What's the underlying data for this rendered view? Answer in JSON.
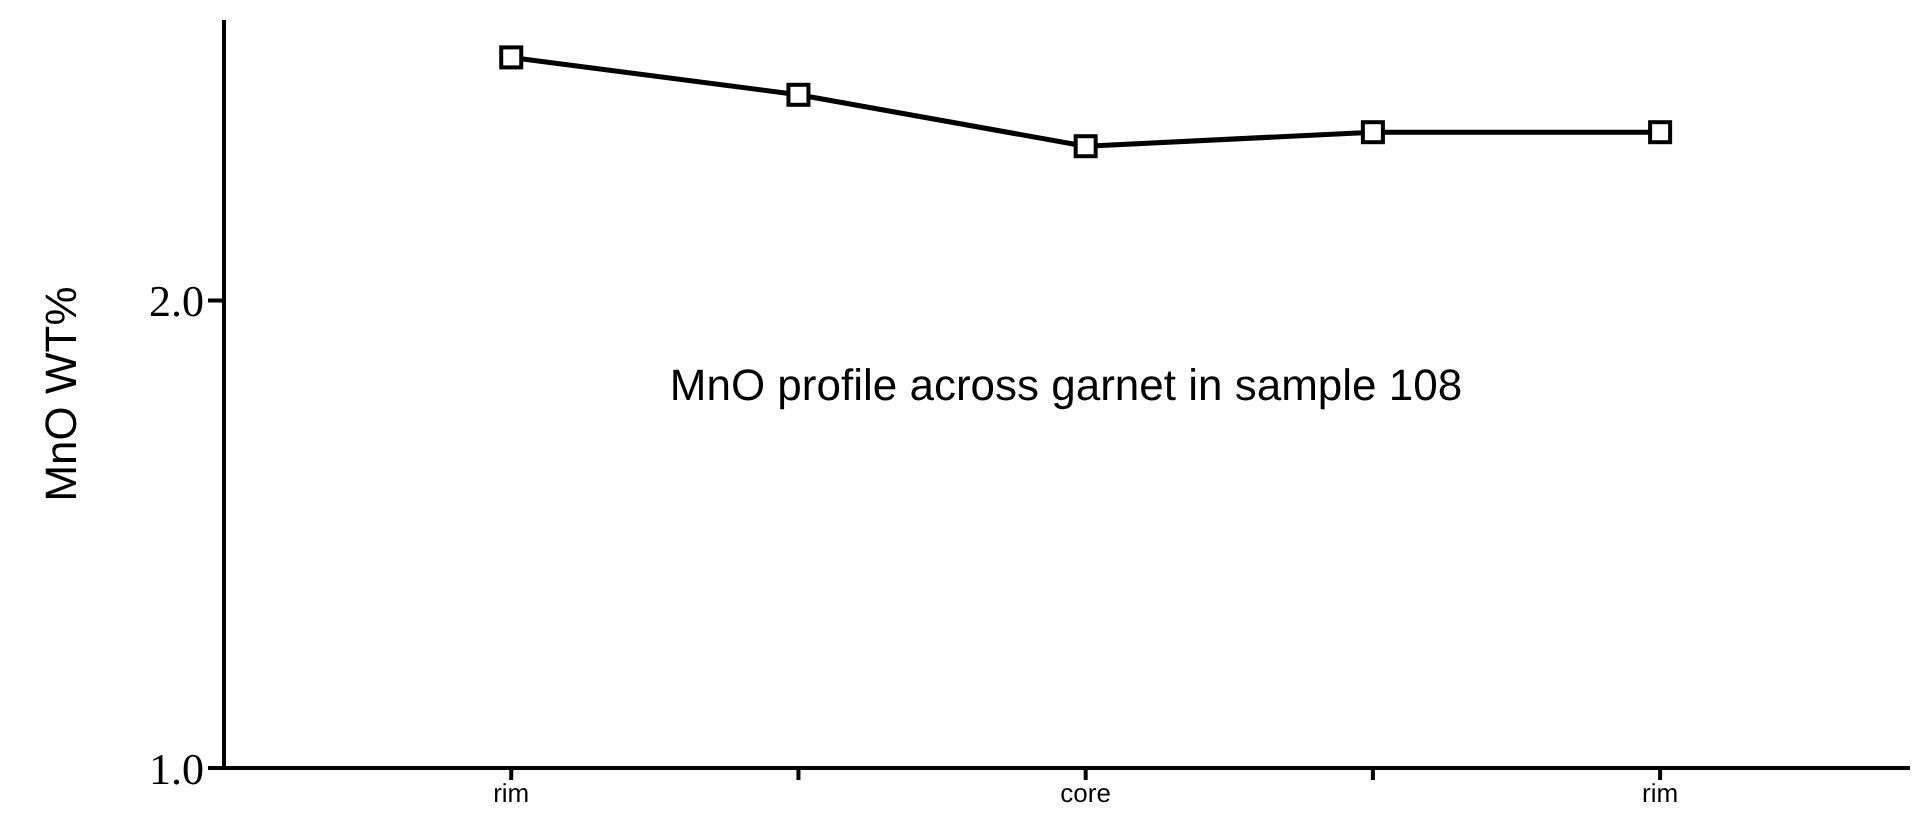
{
  "chart_data": {
    "type": "line",
    "title": "MnO profile across garnet in sample 108",
    "ylabel": "MnO WT%",
    "categories": [
      "rim",
      null,
      "core",
      null,
      "rim"
    ],
    "series": [
      {
        "color": "#000000",
        "values": [
          2.52,
          2.44,
          2.33,
          2.36,
          2.36
        ]
      }
    ],
    "ylim": [
      1.0,
      2.6
    ],
    "yticks": [
      {
        "value": 1,
        "label": "1.0"
      },
      {
        "value": 2,
        "label": "2.0"
      }
    ],
    "marker": "square",
    "line_style": "solid",
    "grid": false,
    "legend": false
  }
}
